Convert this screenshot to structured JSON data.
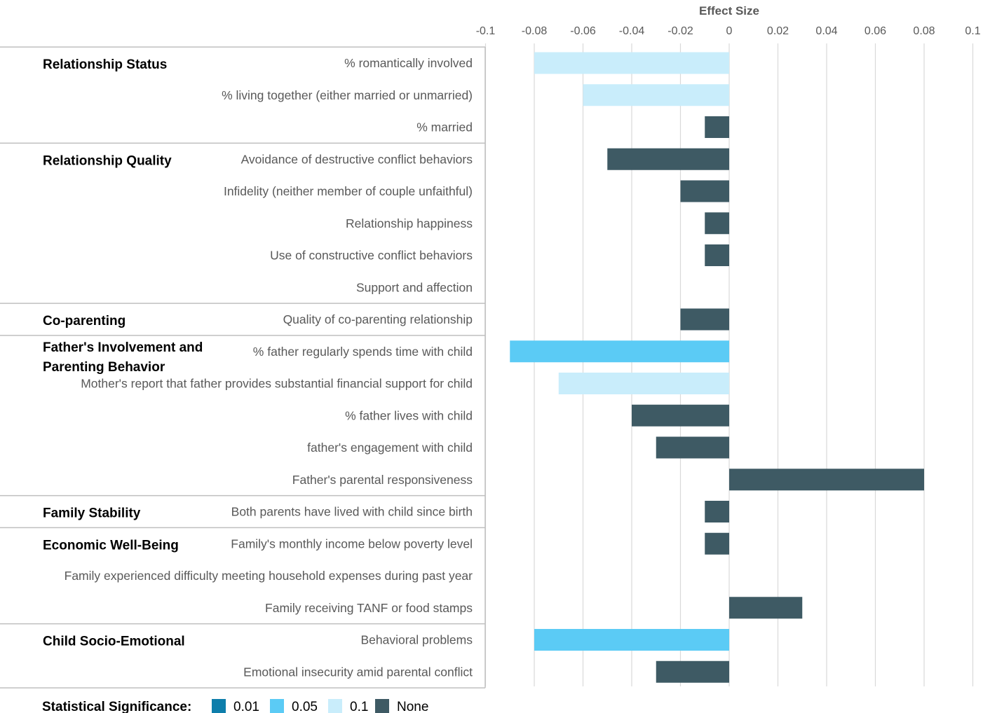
{
  "chart_data": {
    "type": "bar",
    "orientation": "horizontal",
    "xlabel": "Effect Size",
    "xlim": [
      -0.1,
      0.1
    ],
    "xticks": [
      "-0.1",
      "-0.08",
      "-0.06",
      "-0.04",
      "-0.02",
      "0",
      "0.02",
      "0.04",
      "0.06",
      "0.08",
      "0.1"
    ],
    "grid": true,
    "groups": [
      {
        "name": "Relationship Status",
        "rows": [
          {
            "label": "% romantically involved",
            "value": -0.08,
            "significance": "0.1"
          },
          {
            "label": "% living together (either married or unmarried)",
            "value": -0.06,
            "significance": "0.1"
          },
          {
            "label": "% married",
            "value": -0.01,
            "significance": "None"
          }
        ]
      },
      {
        "name": "Relationship Quality",
        "rows": [
          {
            "label": "Avoidance of destructive conflict behaviors",
            "value": -0.05,
            "significance": "None"
          },
          {
            "label": "Infidelity (neither member of couple unfaithful)",
            "value": -0.02,
            "significance": "None"
          },
          {
            "label": "Relationship happiness",
            "value": -0.01,
            "significance": "None"
          },
          {
            "label": "Use of constructive conflict behaviors",
            "value": -0.01,
            "significance": "None"
          },
          {
            "label": "Support and affection",
            "value": 0,
            "significance": "None"
          }
        ]
      },
      {
        "name": "Co-parenting",
        "rows": [
          {
            "label": "Quality of co-parenting relationship",
            "value": -0.02,
            "significance": "None"
          }
        ]
      },
      {
        "name": "Father's Involvement and Parenting Behavior",
        "rows": [
          {
            "label": "% father regularly spends time with child",
            "value": -0.09,
            "significance": "0.05"
          },
          {
            "label": "Mother's report that father provides substantial financial support for child",
            "value": -0.07,
            "significance": "0.1"
          },
          {
            "label": "% father lives with child",
            "value": -0.04,
            "significance": "None"
          },
          {
            "label": "father's engagement with child",
            "value": -0.03,
            "significance": "None"
          },
          {
            "label": "Father's parental responsiveness",
            "value": 0.08,
            "significance": "None"
          }
        ]
      },
      {
        "name": "Family Stability",
        "rows": [
          {
            "label": "Both parents have lived with child since birth",
            "value": -0.01,
            "significance": "None"
          }
        ]
      },
      {
        "name": "Economic Well-Being",
        "rows": [
          {
            "label": "Family's monthly income below poverty level",
            "value": -0.01,
            "significance": "None"
          },
          {
            "label": "Family experienced difficulty meeting household expenses during past year",
            "value": 0,
            "significance": "None"
          },
          {
            "label": "Family receiving TANF or food stamps",
            "value": 0.03,
            "significance": "None"
          }
        ]
      },
      {
        "name": "Child Socio-Emotional",
        "rows": [
          {
            "label": "Behavioral problems",
            "value": -0.08,
            "significance": "0.05"
          },
          {
            "label": "Emotional insecurity amid parental conflict",
            "value": -0.03,
            "significance": "None"
          }
        ]
      }
    ],
    "legend": {
      "title": "Statistical Significance:",
      "placement": "bottom-left",
      "items": [
        {
          "label": "0.01",
          "color": "#0e7eab"
        },
        {
          "label": "0.05",
          "color": "#5bcbf5"
        },
        {
          "label": "0.1",
          "color": "#c9edfb"
        },
        {
          "label": "None",
          "color": "#3e5a64"
        }
      ]
    }
  }
}
